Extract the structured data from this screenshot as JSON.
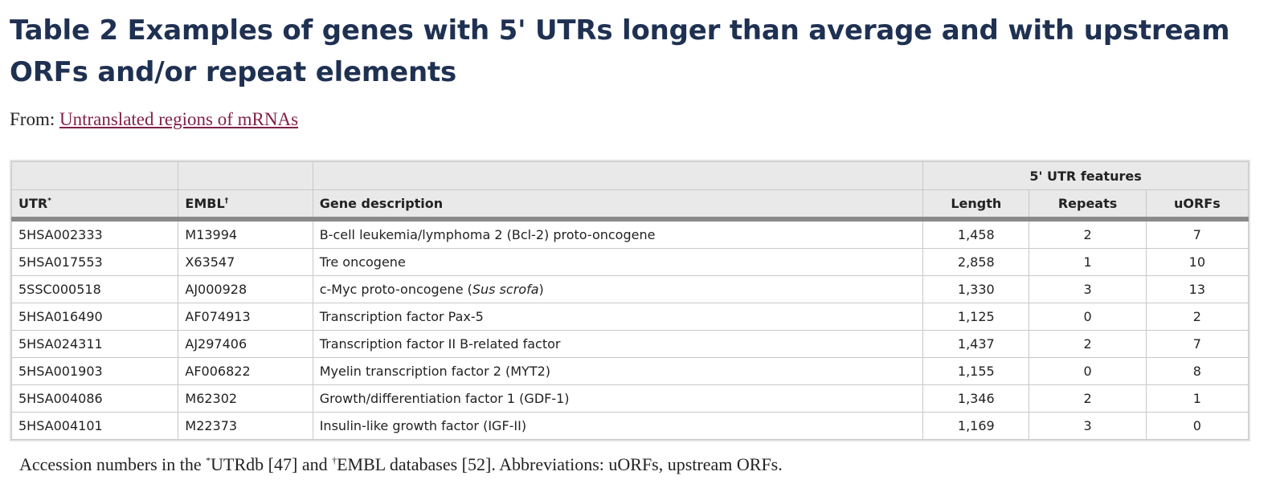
{
  "title": "Table 2 Examples of genes with 5' UTRs longer than average and with upstream ORFs and/or repeat elements",
  "from": {
    "prefix": "From: ",
    "link_text": "Untranslated regions of mRNAs"
  },
  "table": {
    "group_header": "5' UTR features",
    "columns": {
      "utr": "UTR",
      "utr_mark": "*",
      "embl": "EMBL",
      "embl_mark": "†",
      "description": "Gene description",
      "length": "Length",
      "repeats": "Repeats",
      "uorfs": "uORFs"
    },
    "rows": [
      {
        "utr": "5HSA002333",
        "embl": "M13994",
        "desc": "B-cell leukemia/lymphoma 2 (Bcl-2) proto-oncogene",
        "desc_italic": "",
        "desc_after": "",
        "length": "1,458",
        "repeats": "2",
        "uorfs": "7"
      },
      {
        "utr": "5HSA017553",
        "embl": "X63547",
        "desc": "Tre oncogene",
        "desc_italic": "",
        "desc_after": "",
        "length": "2,858",
        "repeats": "1",
        "uorfs": "10"
      },
      {
        "utr": "5SSC000518",
        "embl": "AJ000928",
        "desc": "c-Myc proto-oncogene (",
        "desc_italic": "Sus scrofa",
        "desc_after": ")",
        "length": "1,330",
        "repeats": "3",
        "uorfs": "13"
      },
      {
        "utr": "5HSA016490",
        "embl": "AF074913",
        "desc": "Transcription factor Pax-5",
        "desc_italic": "",
        "desc_after": "",
        "length": "1,125",
        "repeats": "0",
        "uorfs": "2"
      },
      {
        "utr": "5HSA024311",
        "embl": "AJ297406",
        "desc": "Transcription factor II B-related factor",
        "desc_italic": "",
        "desc_after": "",
        "length": "1,437",
        "repeats": "2",
        "uorfs": "7"
      },
      {
        "utr": "5HSA001903",
        "embl": "AF006822",
        "desc": "Myelin transcription factor 2 (MYT2)",
        "desc_italic": "",
        "desc_after": "",
        "length": "1,155",
        "repeats": "0",
        "uorfs": "8"
      },
      {
        "utr": "5HSA004086",
        "embl": "M62302",
        "desc": "Growth/differentiation factor 1 (GDF-1)",
        "desc_italic": "",
        "desc_after": "",
        "length": "1,346",
        "repeats": "2",
        "uorfs": "1"
      },
      {
        "utr": "5HSA004101",
        "embl": "M22373",
        "desc": "Insulin-like growth factor (IGF-II)",
        "desc_italic": "",
        "desc_after": "",
        "length": "1,169",
        "repeats": "3",
        "uorfs": "0"
      }
    ]
  },
  "footnote": {
    "part1": "Accession numbers in the ",
    "mark1": "*",
    "part2": "UTRdb [47] and ",
    "mark2": "†",
    "part3": "EMBL databases [52]. Abbreviations: uORFs, upstream ORFs."
  }
}
